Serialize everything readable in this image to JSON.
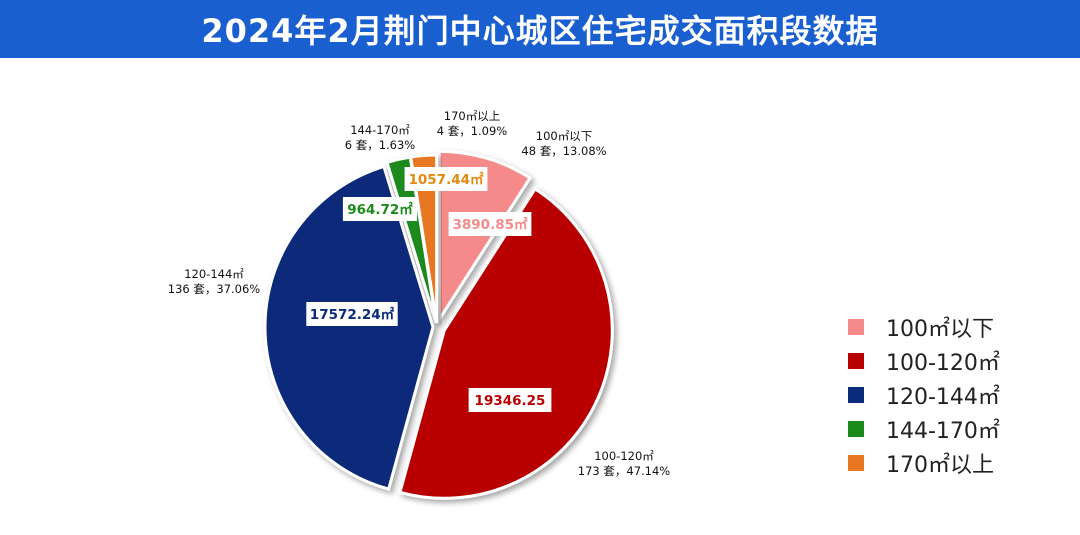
{
  "title": "2024年2月荆门中心城区住宅成交面积段数据",
  "chart_data": {
    "type": "pie",
    "categories": [
      "100㎡以下",
      "100-120㎡",
      "120-144㎡",
      "144-170㎡",
      "170㎡以上"
    ],
    "values": [
      3890.85,
      19346.25,
      17572.24,
      964.72,
      1057.44
    ],
    "value_labels": [
      "3890.85㎡",
      "19346.25",
      "17572.24㎡",
      "964.72㎡",
      "1057.44㎡"
    ],
    "callouts": [
      {
        "name": "100㎡以下",
        "detail": "48 套，13.08%"
      },
      {
        "name": "100-120㎡",
        "detail": "173 套，47.14%"
      },
      {
        "name": "120-144㎡",
        "detail": "136 套，37.06%"
      },
      {
        "name": "144-170㎡",
        "detail": "6 套，1.63%"
      },
      {
        "name": "170㎡以上",
        "detail": "4 套，1.09%"
      }
    ],
    "colors": [
      "#f48a8a",
      "#b80000",
      "#0a2a7a",
      "#1a8a1a",
      "#e87722"
    ],
    "label_colors": [
      "#f48a8a",
      "#b80000",
      "#0a2a7a",
      "#1a8a1a",
      "#e08a10"
    ],
    "legend_position": "right"
  }
}
